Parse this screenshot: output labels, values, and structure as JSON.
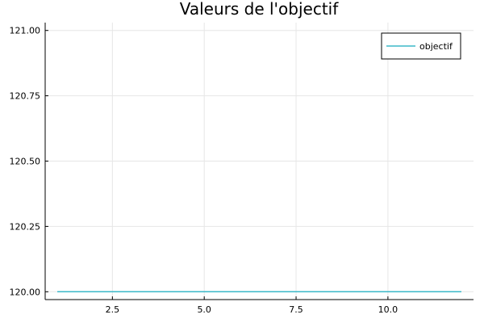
{
  "chart_data": {
    "type": "line",
    "title": "Valeurs de l'objectif",
    "xlabel": "",
    "ylabel": "",
    "xlim": [
      0.67,
      12.33
    ],
    "ylim": [
      119.97,
      121.03
    ],
    "xticks": [
      2.5,
      5.0,
      7.5,
      10.0
    ],
    "xtick_labels": [
      "2.5",
      "5.0",
      "7.5",
      "10.0"
    ],
    "yticks": [
      120.0,
      120.25,
      120.5,
      120.75,
      121.0
    ],
    "ytick_labels": [
      "120.00",
      "120.25",
      "120.50",
      "120.75",
      "121.00"
    ],
    "grid": true,
    "legend_position": "top-right",
    "series": [
      {
        "name": "objectif",
        "color": "#3bb8c9",
        "x": [
          1,
          2,
          3,
          4,
          5,
          6,
          7,
          8,
          9,
          10,
          11,
          12
        ],
        "y": [
          120,
          120,
          120,
          120,
          120,
          120,
          120,
          120,
          120,
          120,
          120,
          120
        ]
      }
    ]
  }
}
